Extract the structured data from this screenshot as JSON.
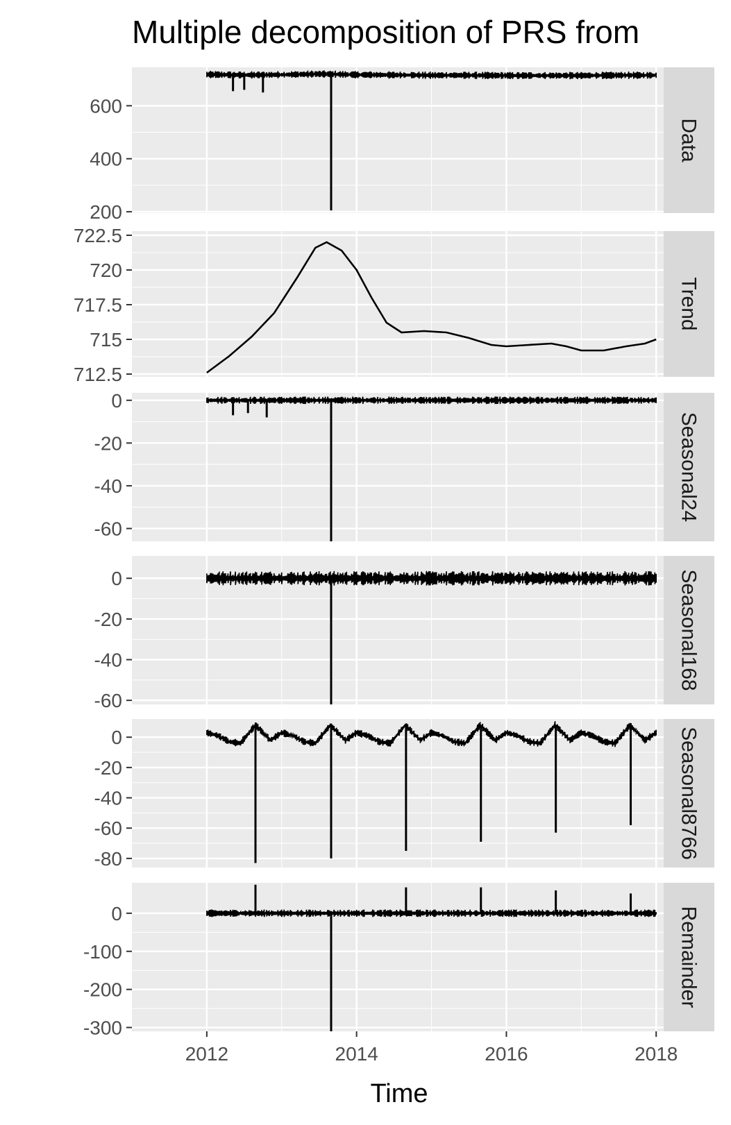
{
  "chart_data": {
    "type": "line",
    "title": "Multiple decomposition of  PRS from",
    "xlabel": "Time",
    "ylabel": "",
    "grid": true,
    "background_color": "#ebebeb",
    "grid_color": "#ffffff",
    "strip_color": "#d9d9d9",
    "line_color": "#000000",
    "x_ticks": [
      2012,
      2014,
      2016,
      2018
    ],
    "xlim": [
      2011.0,
      2018.1
    ],
    "panels": [
      {
        "name": "Data",
        "ylim": [
          195,
          745
        ],
        "y_ticks": [
          200,
          400,
          600
        ],
        "series": [
          {
            "x": [
              2012.0,
              2012.5,
              2013.0,
              2013.5,
              2013.7,
              2014.0,
              2014.5,
              2015.0,
              2015.5,
              2016.0,
              2016.5,
              2017.0,
              2017.5,
              2018.0
            ],
            "y": [
              718,
              716,
              717,
              720,
              719,
              717,
              716,
              715,
              715,
              714,
              714,
              714,
              715,
              715
            ]
          }
        ],
        "spikes": [
          {
            "x": 2012.35,
            "y": 655
          },
          {
            "x": 2012.5,
            "y": 660
          },
          {
            "x": 2012.75,
            "y": 650
          },
          {
            "x": 2013.66,
            "y": 205
          }
        ]
      },
      {
        "name": "Trend",
        "ylim": [
          712.3,
          722.8
        ],
        "y_ticks": [
          712.5,
          715.0,
          717.5,
          720.0,
          722.5
        ],
        "series": [
          {
            "x": [
              2012.0,
              2012.3,
              2012.6,
              2012.9,
              2013.2,
              2013.45,
              2013.6,
              2013.8,
              2014.0,
              2014.2,
              2014.4,
              2014.6,
              2014.9,
              2015.2,
              2015.5,
              2015.8,
              2016.0,
              2016.3,
              2016.6,
              2016.8,
              2017.0,
              2017.3,
              2017.6,
              2017.85,
              2018.0
            ],
            "y": [
              712.6,
              713.8,
              715.2,
              716.9,
              719.4,
              721.6,
              722.0,
              721.4,
              720.0,
              718.0,
              716.2,
              715.5,
              715.6,
              715.5,
              715.1,
              714.6,
              714.5,
              714.6,
              714.7,
              714.5,
              714.2,
              714.2,
              714.5,
              714.7,
              715.0
            ]
          }
        ]
      },
      {
        "name": "Seasonal24",
        "ylim": [
          -66,
          3.5
        ],
        "y_ticks": [
          -60,
          -40,
          -20,
          0
        ],
        "series": [
          {
            "x": [
              2012.0,
              2013.0,
              2014.0,
              2015.0,
              2016.0,
              2017.0,
              2018.0
            ],
            "y": [
              0,
              0,
              0,
              0,
              0,
              0,
              0
            ]
          }
        ],
        "spikes": [
          {
            "x": 2012.35,
            "y": -7
          },
          {
            "x": 2012.55,
            "y": -6
          },
          {
            "x": 2012.8,
            "y": -8
          },
          {
            "x": 2013.66,
            "y": -66
          }
        ]
      },
      {
        "name": "Seasonal168",
        "ylim": [
          -62,
          11
        ],
        "y_ticks": [
          -60,
          -40,
          -20,
          0
        ],
        "series": [
          {
            "x": [
              2012.0,
              2013.0,
              2014.0,
              2015.0,
              2016.0,
              2017.0,
              2018.0
            ],
            "y": [
              0,
              0,
              0,
              0,
              0,
              0,
              0
            ]
          }
        ],
        "spikes": [
          {
            "x": 2013.66,
            "y": -62
          }
        ]
      },
      {
        "name": "Seasonal8766",
        "ylim": [
          -86,
          12
        ],
        "y_ticks": [
          -80,
          -60,
          -40,
          -20,
          0
        ],
        "series": [
          {
            "x": [
              2012.0,
              2012.15,
              2012.3,
              2012.45,
              2012.65,
              2012.85,
              2013.0,
              2013.15,
              2013.3,
              2013.45,
              2013.65,
              2013.85,
              2014.0,
              2014.15,
              2014.3,
              2014.45,
              2014.65,
              2014.85,
              2015.0,
              2015.15,
              2015.3,
              2015.45,
              2015.65,
              2015.85,
              2016.0,
              2016.15,
              2016.3,
              2016.45,
              2016.65,
              2016.85,
              2017.0,
              2017.15,
              2017.3,
              2017.45,
              2017.65,
              2017.85,
              2018.0
            ],
            "y": [
              3,
              1,
              -3,
              -4,
              8,
              -2,
              3,
              1,
              -3,
              -4,
              8,
              -2,
              3,
              1,
              -3,
              -4,
              8,
              -2,
              3,
              1,
              -3,
              -4,
              8,
              -2,
              3,
              1,
              -3,
              -4,
              8,
              -2,
              3,
              1,
              -3,
              -4,
              8,
              -2,
              3
            ]
          }
        ],
        "spikes": [
          {
            "x": 2012.65,
            "y": -83
          },
          {
            "x": 2013.66,
            "y": -80
          },
          {
            "x": 2014.66,
            "y": -75
          },
          {
            "x": 2015.66,
            "y": -69
          },
          {
            "x": 2016.66,
            "y": -63
          },
          {
            "x": 2017.66,
            "y": -58
          }
        ]
      },
      {
        "name": "Remainder",
        "ylim": [
          -310,
          80
        ],
        "y_ticks": [
          -300,
          -200,
          -100,
          0
        ],
        "series": [
          {
            "x": [
              2012.0,
              2013.0,
              2014.0,
              2015.0,
              2016.0,
              2017.0,
              2018.0
            ],
            "y": [
              0,
              0,
              0,
              0,
              0,
              0,
              0
            ]
          }
        ],
        "spikes": [
          {
            "x": 2012.65,
            "y": 75
          },
          {
            "x": 2013.66,
            "y": -310
          },
          {
            "x": 2014.66,
            "y": 68
          },
          {
            "x": 2015.66,
            "y": 68
          },
          {
            "x": 2016.66,
            "y": 60
          },
          {
            "x": 2017.66,
            "y": 52
          }
        ]
      }
    ]
  }
}
